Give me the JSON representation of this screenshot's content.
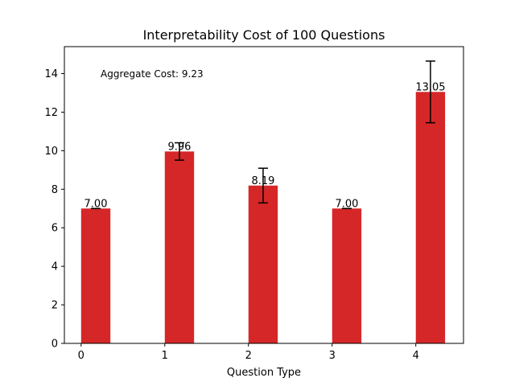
{
  "chart_data": {
    "type": "bar",
    "title": "Interpretability Cost of 100 Questions",
    "xlabel": "Question Type",
    "ylabel": "",
    "categories": [
      "0",
      "1",
      "2",
      "3",
      "4"
    ],
    "x": [
      0,
      1,
      2,
      3,
      4
    ],
    "values": [
      7.0,
      9.96,
      8.19,
      7.0,
      13.05
    ],
    "value_labels": [
      "7.00",
      "9.96",
      "8.19",
      "7.00",
      "13.05"
    ],
    "error": [
      0.0,
      0.45,
      0.9,
      0.0,
      1.6
    ],
    "bar_color": "#d62728",
    "error_color": "#000000",
    "ylim": [
      0,
      15.4
    ],
    "xlim": [
      -0.2,
      4.57
    ],
    "yticks": [
      0,
      2,
      4,
      6,
      8,
      10,
      12,
      14
    ],
    "ytick_labels": [
      "0",
      "2",
      "4",
      "6",
      "8",
      "10",
      "12",
      "14"
    ],
    "xticks": [
      0,
      1,
      2,
      3,
      4
    ],
    "xtick_labels": [
      "0",
      "1",
      "2",
      "3",
      "4"
    ],
    "grid": false,
    "annotation": "Aggregate Cost: 9.23"
  }
}
